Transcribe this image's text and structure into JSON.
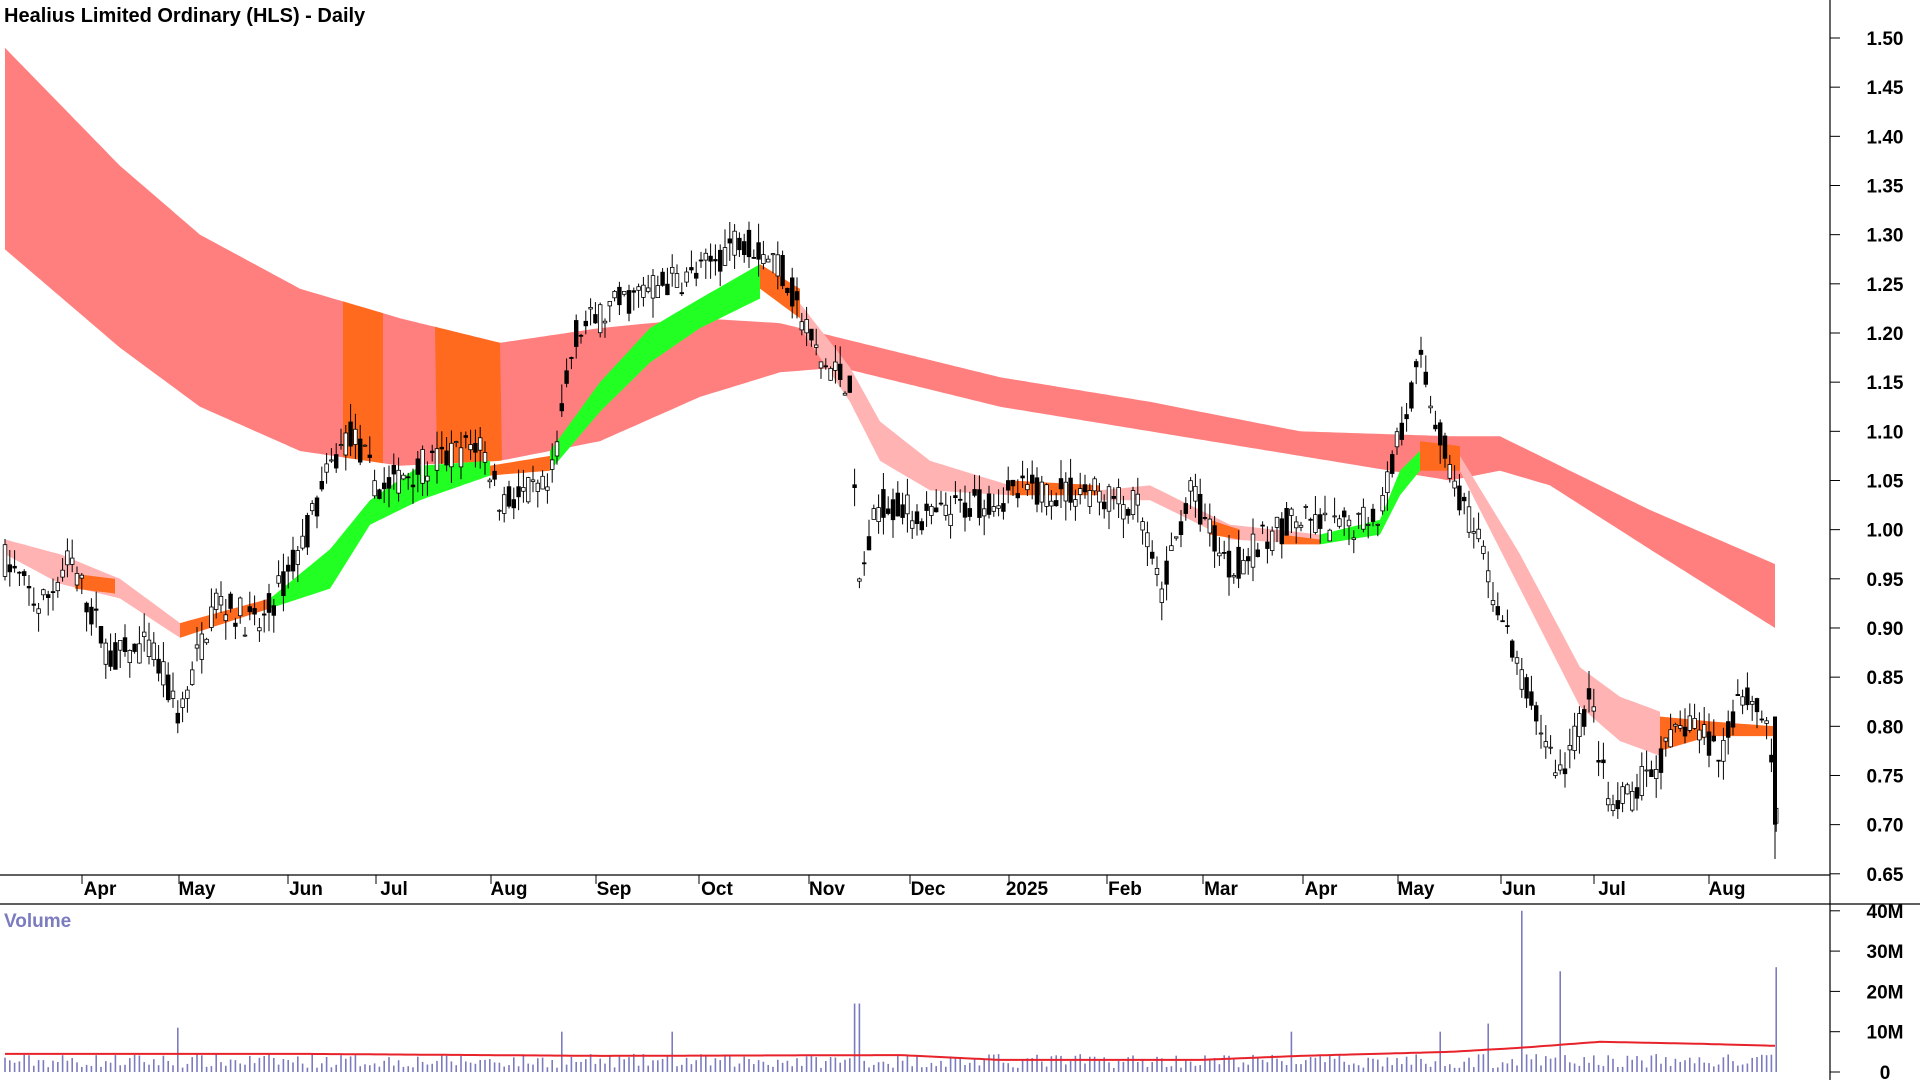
{
  "chart_title": "Healius Limited Ordinary (HLS) - Daily",
  "volume_label": "Volume",
  "colors": {
    "long_band": "#ff7f7f",
    "short_band_down": "#ffb3b3",
    "bullish_short": "#22ff22",
    "compression": "#ff6a1f",
    "volume_bar": "#7b7bbf",
    "volume_ma": "#e8222a",
    "candle": "#000000"
  },
  "chart_data": [
    {
      "type": "candlestick",
      "title": "Healius Limited Ordinary (HLS) - Daily",
      "y_ticks": [
        1.5,
        1.45,
        1.4,
        1.35,
        1.3,
        1.25,
        1.2,
        1.15,
        1.1,
        1.05,
        1.0,
        0.95,
        0.9,
        0.85,
        0.8,
        0.75,
        0.7,
        0.65
      ],
      "y_tick_labels": [
        "1.50",
        "1.45",
        "1.40",
        "1.35",
        "1.30",
        "1.25",
        "1.20",
        "1.15",
        "1.10",
        "1.05",
        "1.00",
        "0.95",
        "0.90",
        "0.85",
        "0.80",
        "0.75",
        "0.70",
        "0.65"
      ],
      "ylim": [
        0.65,
        1.52
      ],
      "x_tick_labels": [
        "Apr",
        "May",
        "Jun",
        "Jul",
        "Aug",
        "Sep",
        "Oct",
        "Nov",
        "Dec",
        "2025",
        "Feb",
        "Mar",
        "Apr",
        "May",
        "Jun",
        "Jul",
        "Aug"
      ],
      "overlays": [
        "long-term moving average band (pink)",
        "short-term moving average band (green / pink / orange)"
      ],
      "last_close": 0.7
    },
    {
      "type": "bar",
      "title": "Volume",
      "y_tick_labels": [
        "40M",
        "30M",
        "20M",
        "10M",
        "0"
      ],
      "y_ticks": [
        40,
        30,
        20,
        10,
        0
      ],
      "ylim": [
        0,
        42
      ],
      "unit": "M",
      "moving_average": "red line",
      "notable_spikes": [
        17,
        40,
        25,
        26
      ]
    }
  ]
}
